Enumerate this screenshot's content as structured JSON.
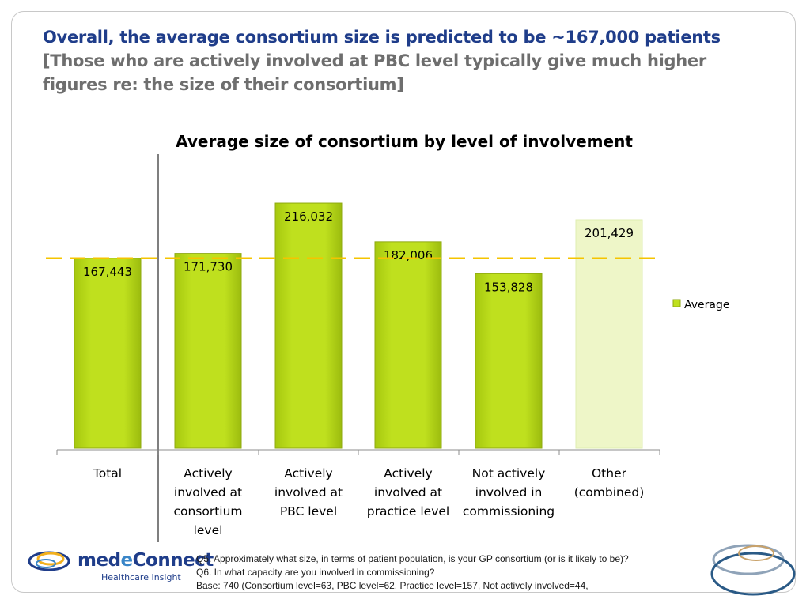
{
  "slide": {
    "title": "Overall, the average consortium size is predicted to be ~167,000 patients",
    "subtitle": "[Those who are actively involved at PBC level typically give much higher figures re: the size of their consortium]"
  },
  "chart_data": {
    "type": "bar",
    "title": "Average size of consortium by level of involvement",
    "categories": [
      [
        "Total"
      ],
      [
        "Actively",
        "involved at",
        "consortium",
        "level"
      ],
      [
        "Actively",
        "involved at",
        "PBC level"
      ],
      [
        "Actively",
        "involved at",
        "practice level"
      ],
      [
        "Not actively",
        "involved in",
        "commissioning"
      ],
      [
        "Other",
        "(combined)"
      ]
    ],
    "series": [
      {
        "name": "Average",
        "values": [
          167443,
          171730,
          216032,
          182006,
          153828,
          201429
        ],
        "labels": [
          "167,443",
          "171,730",
          "216,032",
          "182,006",
          "153,828",
          "201,429"
        ],
        "faded": [
          false,
          false,
          false,
          false,
          false,
          true
        ]
      }
    ],
    "reference_line": {
      "value": 167443,
      "style": "dashed",
      "color": "#f5c400"
    },
    "ylim": [
      0,
      230000
    ],
    "legend_position": "right",
    "grid": false,
    "colors": {
      "bar": "#bfe01e",
      "bar_faded": "#eef6c8",
      "bar_border": "#8faa10",
      "label_faded": "#a6a6a6"
    }
  },
  "footnote": {
    "q5": "Q5. Approximately what size, in terms of patient population, is your GP consortium (or is it likely to be)?",
    "q6": "Q6. In what capacity are you involved in commissioning?",
    "base": "Base: 740 (Consortium level=63, PBC level=62, Practice level=157, Not actively involved=44,"
  },
  "logo": {
    "name_part1": "med",
    "name_part2": "e",
    "name_part3": "Connect",
    "tagline": "Healthcare Insight"
  }
}
